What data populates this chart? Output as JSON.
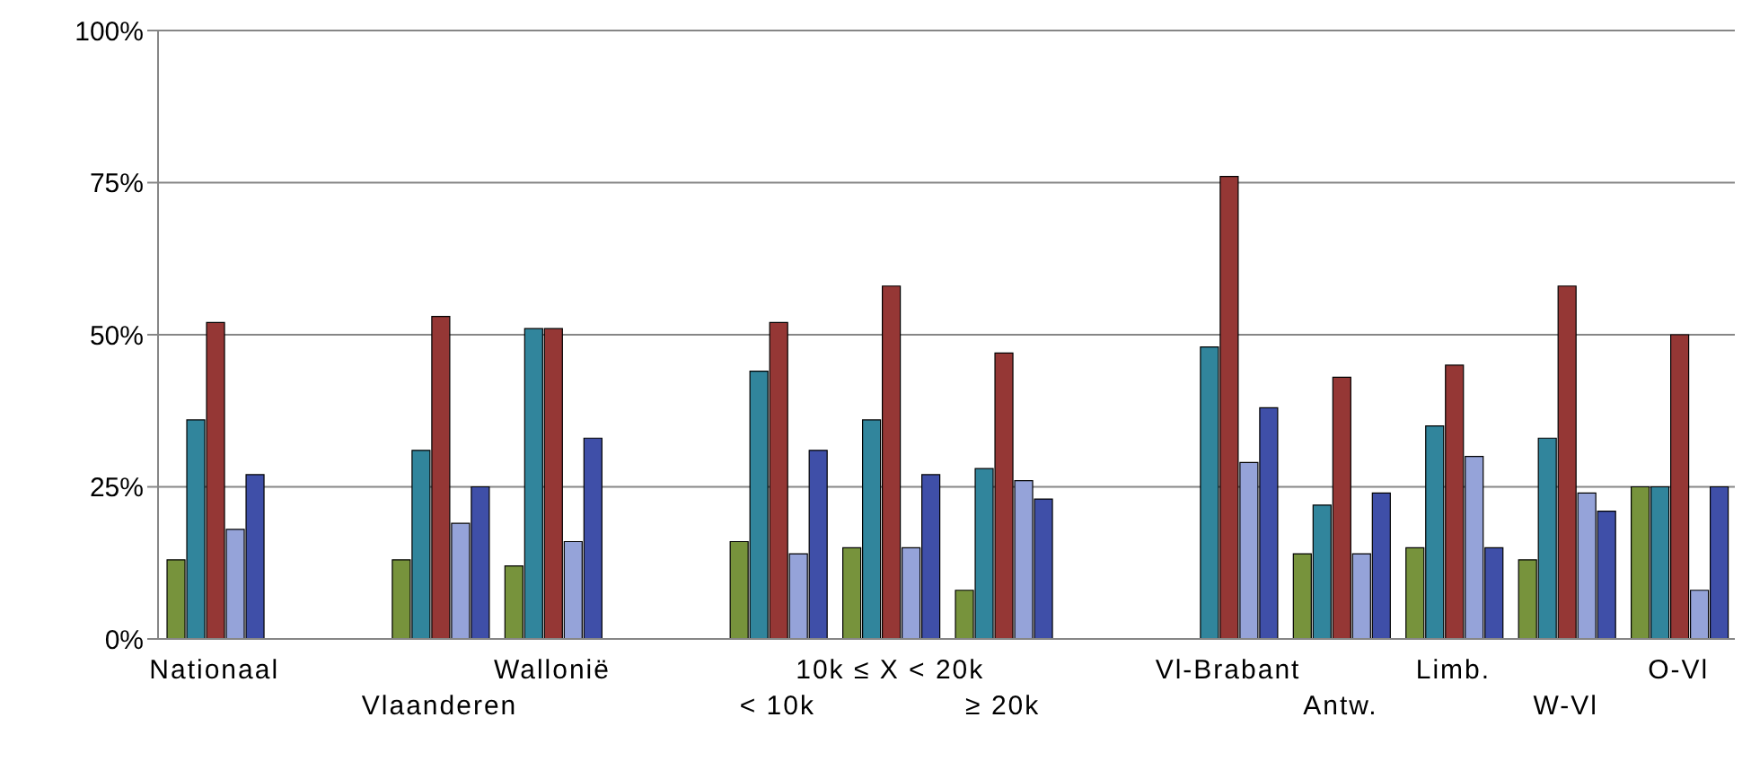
{
  "chart_data": {
    "type": "bar",
    "categories": [
      "Nationaal",
      null,
      "Vlaanderen",
      "Wallonië",
      null,
      "< 10k",
      "10k ≤ X < 20k",
      "≥ 20k",
      null,
      "Vl-Brabant",
      "Antw.",
      "Limb.",
      "W-Vl",
      "O-Vl"
    ],
    "series": [
      {
        "color": "#77933c",
        "values": [
          13,
          null,
          13,
          12,
          null,
          16,
          15,
          8,
          null,
          0,
          14,
          15,
          13,
          25
        ]
      },
      {
        "color": "#31859c",
        "values": [
          36,
          null,
          31,
          51,
          null,
          44,
          36,
          28,
          null,
          48,
          22,
          35,
          33,
          25
        ]
      },
      {
        "color": "#953735",
        "values": [
          52,
          null,
          53,
          51,
          null,
          52,
          58,
          47,
          null,
          76,
          43,
          45,
          58,
          50
        ]
      },
      {
        "color": "#95a3d9",
        "values": [
          18,
          null,
          19,
          16,
          null,
          14,
          15,
          26,
          null,
          29,
          14,
          30,
          24,
          8
        ]
      },
      {
        "color": "#3f4fa8",
        "values": [
          27,
          null,
          25,
          33,
          null,
          31,
          27,
          23,
          null,
          38,
          24,
          15,
          21,
          25
        ]
      }
    ],
    "ylim": [
      0,
      100
    ],
    "yticks": [
      {
        "value": 0,
        "label": "0%"
      },
      {
        "value": 25,
        "label": "25%"
      },
      {
        "value": 50,
        "label": "50%"
      },
      {
        "value": 75,
        "label": "75%"
      },
      {
        "value": 100,
        "label": "100%"
      }
    ],
    "grid": "y"
  }
}
